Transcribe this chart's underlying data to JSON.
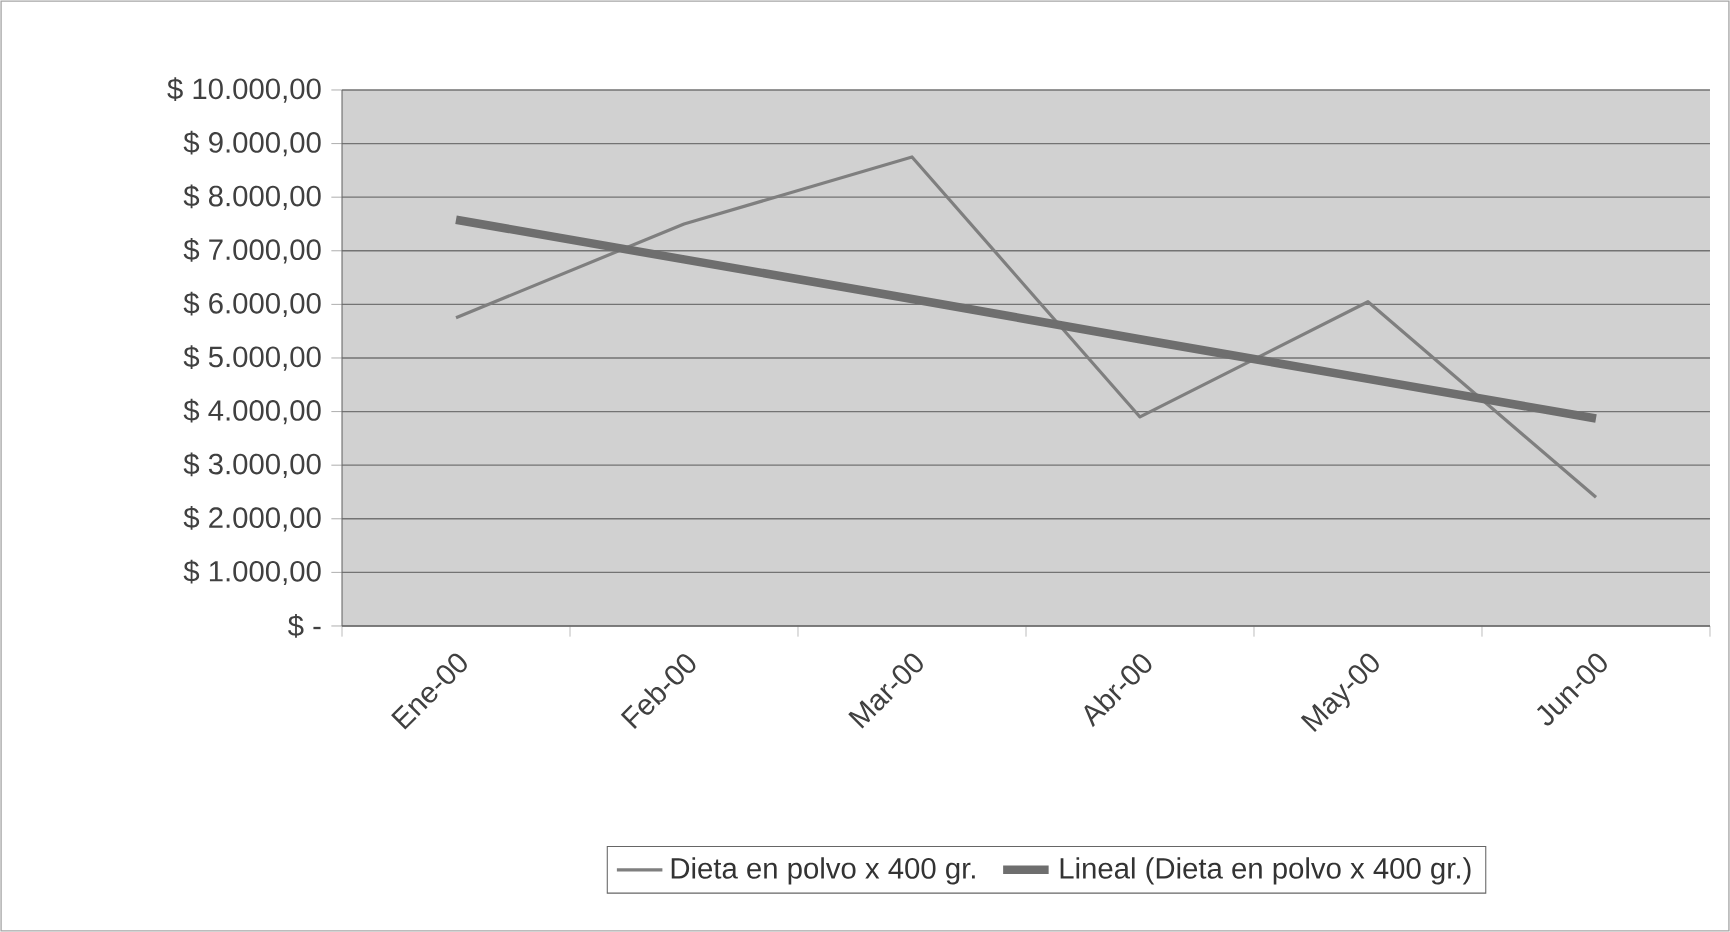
{
  "chart_data": {
    "type": "line",
    "categories": [
      "Ene-00",
      "Feb-00",
      "Mar-00",
      "Abr-00",
      "May-00",
      "Jun-00"
    ],
    "series": [
      {
        "name": "Dieta en polvo x 400 gr.",
        "color": "#7f7f7f",
        "values": [
          5750,
          7500,
          8750,
          3900,
          6050,
          2400
        ]
      },
      {
        "name": "Lineal (Dieta en polvo x 400 gr.)",
        "color": "#6e6e6e",
        "values": [
          7580,
          6840,
          6100,
          5350,
          4610,
          3870
        ]
      }
    ],
    "ylim": [
      0,
      10000
    ],
    "yticks": [
      {
        "value": 0,
        "label": "$ -"
      },
      {
        "value": 1000,
        "label": "$ 1.000,00"
      },
      {
        "value": 2000,
        "label": "$ 2.000,00"
      },
      {
        "value": 3000,
        "label": "$ 3.000,00"
      },
      {
        "value": 4000,
        "label": "$ 4.000,00"
      },
      {
        "value": 5000,
        "label": "$ 5.000,00"
      },
      {
        "value": 6000,
        "label": "$ 6.000,00"
      },
      {
        "value": 7000,
        "label": "$ 7.000,00"
      },
      {
        "value": 8000,
        "label": "$ 8.000,00"
      },
      {
        "value": 9000,
        "label": "$ 9.000,00"
      },
      {
        "value": 10000,
        "label": "$ 10.000,00"
      }
    ],
    "grid": "y",
    "legend": "bottom",
    "marker": "none",
    "line_style": "solid"
  }
}
